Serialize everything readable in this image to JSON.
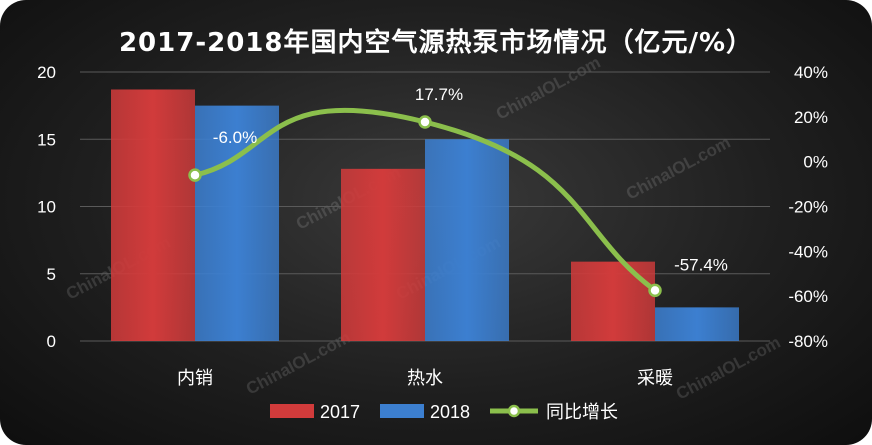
{
  "colors": {
    "bar2017": "#d13b3b",
    "bar2018": "#3c7fd0",
    "line": "#8bbf4c",
    "marker_fill": "#ffffff",
    "text": "#ffffff"
  },
  "watermark": "ChinaIOL.com",
  "chart_data": {
    "type": "bar",
    "title": "2017-2018年国内空气源热泵市场情况（亿元/%）",
    "categories": [
      "内销",
      "热水",
      "采暖"
    ],
    "series": [
      {
        "name": "2017",
        "type": "bar",
        "axis": "left",
        "values": [
          18.7,
          12.8,
          5.9
        ]
      },
      {
        "name": "2018",
        "type": "bar",
        "axis": "left",
        "values": [
          17.5,
          15.0,
          2.5
        ]
      },
      {
        "name": "同比增长",
        "type": "line",
        "axis": "right",
        "values": [
          -6.0,
          17.7,
          -57.4
        ]
      }
    ],
    "data_labels": [
      "-6.0%",
      "17.7%",
      "-57.4%"
    ],
    "y_left": {
      "min": 0,
      "max": 20,
      "ticks": [
        "0",
        "5",
        "10",
        "15",
        "20"
      ]
    },
    "y_right": {
      "min": -80,
      "max": 40,
      "ticks": [
        "-80%",
        "-60%",
        "-40%",
        "-20%",
        "0%",
        "20%",
        "40%"
      ]
    },
    "grid": true,
    "legend_position": "bottom"
  }
}
